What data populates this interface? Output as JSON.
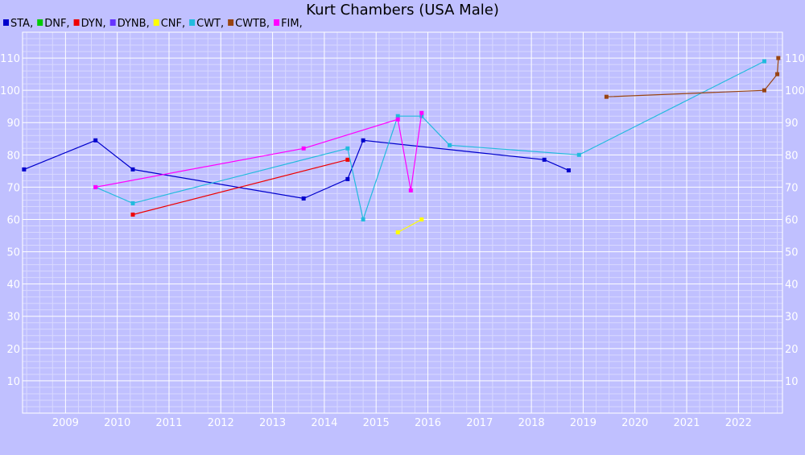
{
  "chart_data": {
    "type": "line",
    "title": "Kurt Chambers (USA Male)",
    "xlabel": "",
    "ylabel": "",
    "xlim": [
      2008.17,
      2022.85
    ],
    "ylim": [
      0,
      118
    ],
    "x_ticks": [
      2009,
      2010,
      2011,
      2012,
      2013,
      2014,
      2015,
      2016,
      2017,
      2018,
      2019,
      2020,
      2021,
      2022
    ],
    "y_ticks": [
      10,
      20,
      30,
      40,
      50,
      60,
      70,
      80,
      90,
      100,
      110
    ],
    "grid": true,
    "legend_position": "top-left",
    "background_color": "#c0c0ff",
    "series": [
      {
        "name": "STA",
        "color": "#0000cc",
        "points": [
          [
            2008.2,
            75.5
          ],
          [
            2009.58,
            84.5
          ],
          [
            2010.3,
            75.5
          ],
          [
            2013.6,
            66.5
          ],
          [
            2014.45,
            72.5
          ],
          [
            2014.75,
            84.5
          ],
          [
            2018.25,
            78.5
          ],
          [
            2018.72,
            75.2
          ]
        ]
      },
      {
        "name": "DNF",
        "color": "#00cc00",
        "points": []
      },
      {
        "name": "DYN",
        "color": "#ee0000",
        "points": [
          [
            2010.3,
            61.5
          ],
          [
            2014.45,
            78.5
          ]
        ]
      },
      {
        "name": "DYNB",
        "color": "#6633ff",
        "points": []
      },
      {
        "name": "CNF",
        "color": "#ffff00",
        "points": [
          [
            2015.42,
            56
          ],
          [
            2015.88,
            60
          ]
        ]
      },
      {
        "name": "CWT",
        "color": "#22bbdd",
        "points": [
          [
            2009.58,
            70
          ],
          [
            2010.3,
            65
          ],
          [
            2014.45,
            82
          ],
          [
            2014.75,
            60
          ],
          [
            2015.42,
            92
          ],
          [
            2015.88,
            92
          ],
          [
            2016.42,
            83
          ],
          [
            2018.92,
            80
          ],
          [
            2022.5,
            109
          ]
        ]
      },
      {
        "name": "CWTB",
        "color": "#994411",
        "points": [
          [
            2019.45,
            98
          ],
          [
            2022.5,
            100
          ],
          [
            2022.75,
            105
          ],
          [
            2022.77,
            110
          ]
        ]
      },
      {
        "name": "FIM",
        "color": "#ff00ff",
        "points": [
          [
            2009.58,
            70
          ],
          [
            2013.6,
            82
          ],
          [
            2015.42,
            91
          ],
          [
            2015.67,
            69
          ],
          [
            2015.88,
            93
          ]
        ]
      }
    ]
  }
}
